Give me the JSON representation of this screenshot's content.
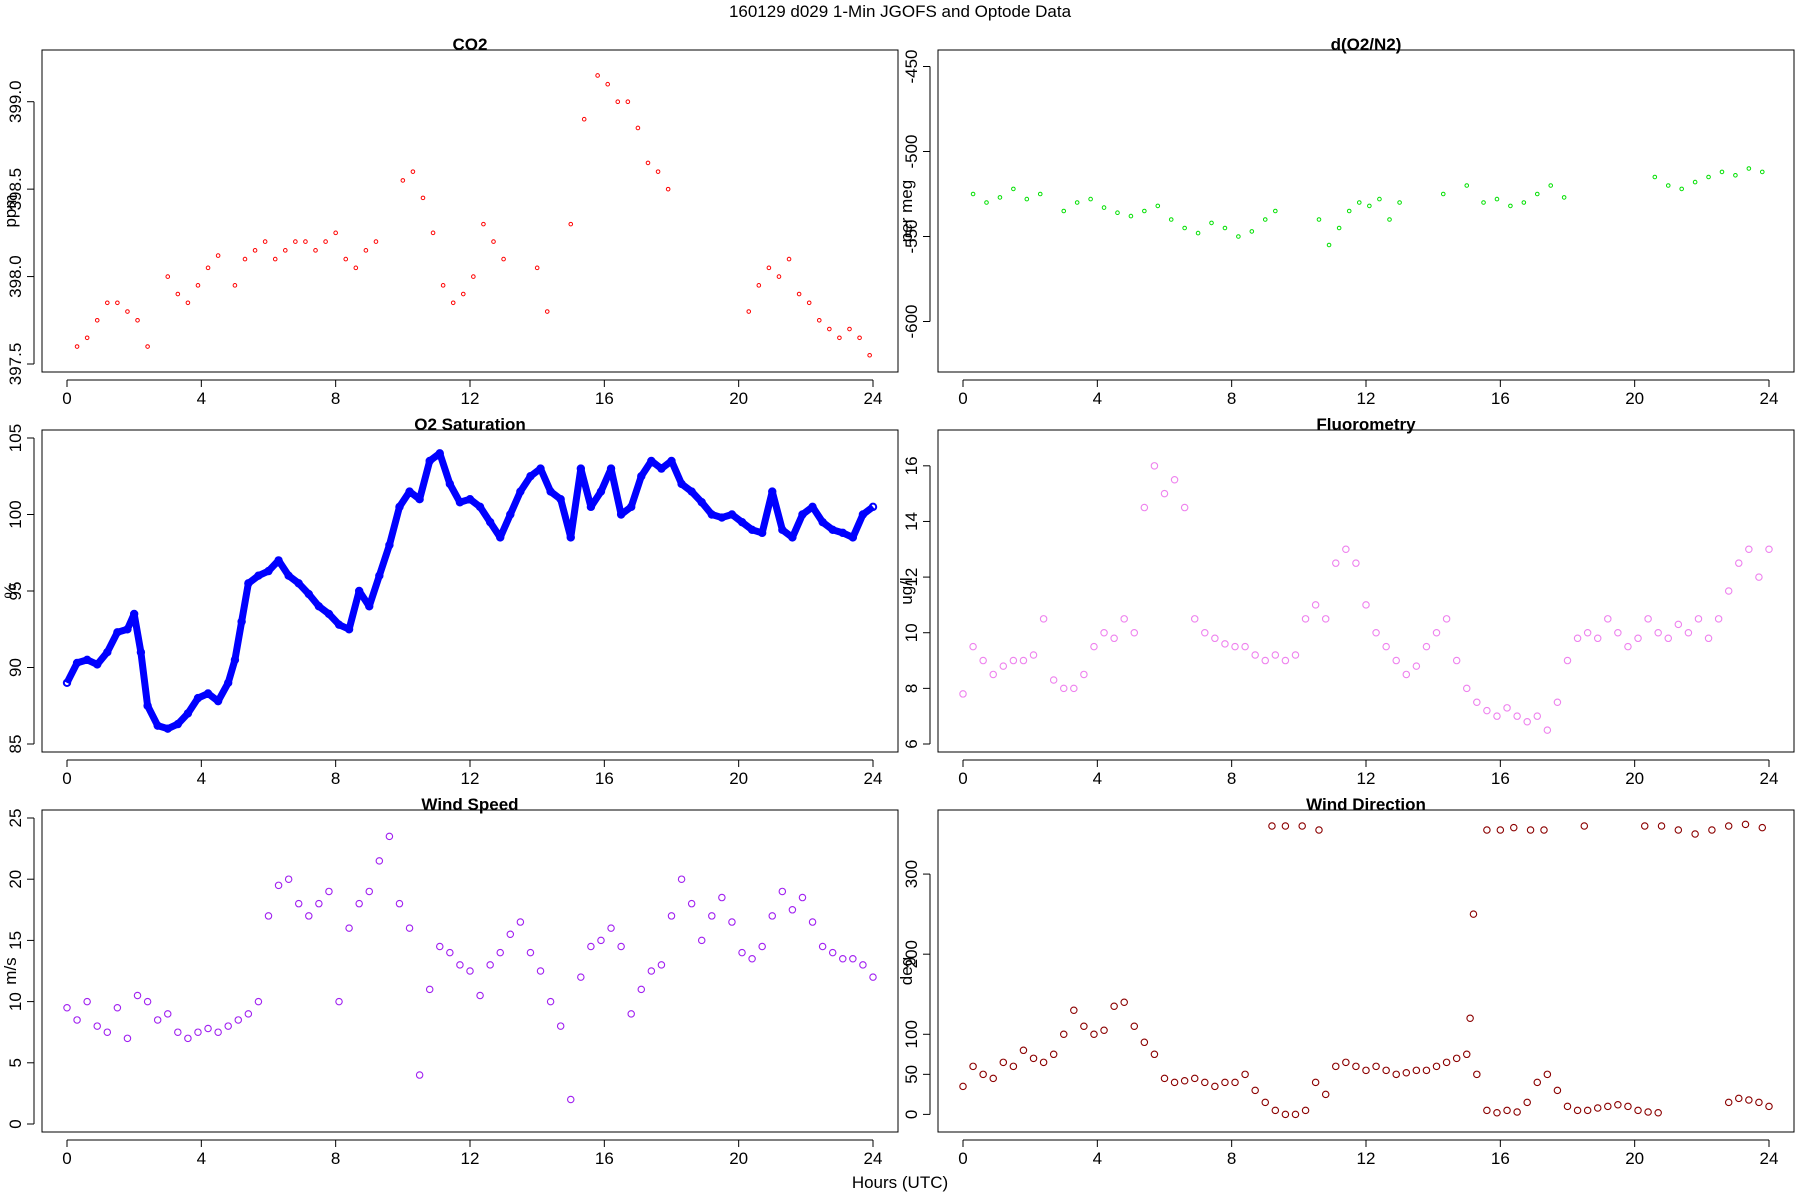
{
  "figure": {
    "title": "160129   d029   1-Min  JGOFS and Optode Data",
    "xlabel": "Hours (UTC)"
  },
  "chart_data": [
    {
      "id": "co2",
      "type": "scatter",
      "title": "CO2",
      "ylabel": "ppm",
      "color": "#ff0000",
      "marker": "small-open-circle",
      "xlim": [
        0,
        24
      ],
      "ylim": [
        397.5,
        399.25
      ],
      "xticks": [
        0,
        4,
        8,
        12,
        16,
        20,
        24
      ],
      "yticks": [
        397.5,
        398.0,
        398.5,
        399.0
      ],
      "ytick_labels": [
        "397.5",
        "398.0",
        "398.5",
        "399.0"
      ],
      "x": [
        0.3,
        0.6,
        0.9,
        1.2,
        1.5,
        1.8,
        2.1,
        2.4,
        3.0,
        3.3,
        3.6,
        3.9,
        4.2,
        4.5,
        5.0,
        5.3,
        5.6,
        5.9,
        6.2,
        6.5,
        6.8,
        7.1,
        7.4,
        7.7,
        8.0,
        8.3,
        8.6,
        8.9,
        9.2,
        10.0,
        10.3,
        10.6,
        10.9,
        11.2,
        11.5,
        11.8,
        12.1,
        12.4,
        12.7,
        13.0,
        14.0,
        14.3,
        15.0,
        15.4,
        15.8,
        16.1,
        16.4,
        16.7,
        17.0,
        17.3,
        17.6,
        17.9,
        20.3,
        20.6,
        20.9,
        21.2,
        21.5,
        21.8,
        22.1,
        22.4,
        22.7,
        23.0,
        23.3,
        23.6,
        23.9
      ],
      "y": [
        397.6,
        397.65,
        397.75,
        397.85,
        397.85,
        397.8,
        397.75,
        397.6,
        398.0,
        397.9,
        397.85,
        397.95,
        398.05,
        398.12,
        397.95,
        398.1,
        398.15,
        398.2,
        398.1,
        398.15,
        398.2,
        398.2,
        398.15,
        398.2,
        398.25,
        398.1,
        398.05,
        398.15,
        398.2,
        398.55,
        398.6,
        398.45,
        398.25,
        397.95,
        397.85,
        397.9,
        398.0,
        398.3,
        398.2,
        398.1,
        398.05,
        397.8,
        398.3,
        398.9,
        399.15,
        399.1,
        399.0,
        399.0,
        398.85,
        398.65,
        398.6,
        398.5,
        397.8,
        397.95,
        398.05,
        398.0,
        398.1,
        397.9,
        397.85,
        397.75,
        397.7,
        397.65,
        397.7,
        397.65,
        397.55
      ]
    },
    {
      "id": "do2n2",
      "type": "scatter",
      "title": "d(O2/N2)",
      "ylabel": "per meg",
      "color": "#00e000",
      "marker": "small-open-circle",
      "xlim": [
        0,
        24
      ],
      "ylim": [
        -625,
        -445
      ],
      "xticks": [
        0,
        4,
        8,
        12,
        16,
        20,
        24
      ],
      "yticks": [
        -600,
        -550,
        -500,
        -450
      ],
      "ytick_labels": [
        "-600",
        "-550",
        "-500",
        "-450"
      ],
      "x": [
        0.3,
        0.7,
        1.1,
        1.5,
        1.9,
        2.3,
        3.0,
        3.4,
        3.8,
        4.2,
        4.6,
        5.0,
        5.4,
        5.8,
        6.2,
        6.6,
        7.0,
        7.4,
        7.8,
        8.2,
        8.6,
        9.0,
        9.3,
        10.6,
        10.9,
        11.2,
        11.5,
        11.8,
        12.1,
        12.4,
        12.7,
        13.0,
        14.3,
        15.0,
        15.5,
        15.9,
        16.3,
        16.7,
        17.1,
        17.5,
        17.9,
        20.6,
        21.0,
        21.4,
        21.8,
        22.2,
        22.6,
        23.0,
        23.4,
        23.8
      ],
      "y": [
        -525,
        -530,
        -527,
        -522,
        -528,
        -525,
        -535,
        -530,
        -528,
        -533,
        -536,
        -538,
        -535,
        -532,
        -540,
        -545,
        -548,
        -542,
        -545,
        -550,
        -547,
        -540,
        -535,
        -540,
        -555,
        -545,
        -535,
        -530,
        -532,
        -528,
        -540,
        -530,
        -525,
        -520,
        -530,
        -528,
        -532,
        -530,
        -525,
        -520,
        -527,
        -515,
        -520,
        -522,
        -518,
        -515,
        -512,
        -514,
        -510,
        -512
      ]
    },
    {
      "id": "o2sat",
      "type": "scatter",
      "title": "O2 Saturation",
      "ylabel": "%",
      "color": "#0000ff",
      "marker": "dense-open-circle-line",
      "xlim": [
        0,
        24
      ],
      "ylim": [
        85,
        105
      ],
      "xticks": [
        0,
        4,
        8,
        12,
        16,
        20,
        24
      ],
      "yticks": [
        85,
        90,
        95,
        100,
        105
      ],
      "ytick_labels": [
        "85",
        "90",
        "95",
        "100",
        "105"
      ],
      "x": [
        0.0,
        0.3,
        0.6,
        0.9,
        1.2,
        1.5,
        1.8,
        2.0,
        2.2,
        2.4,
        2.7,
        3.0,
        3.3,
        3.6,
        3.9,
        4.2,
        4.5,
        4.8,
        5.0,
        5.2,
        5.4,
        5.7,
        6.0,
        6.3,
        6.6,
        6.9,
        7.2,
        7.5,
        7.8,
        8.1,
        8.4,
        8.7,
        9.0,
        9.3,
        9.6,
        9.9,
        10.2,
        10.5,
        10.8,
        11.1,
        11.4,
        11.7,
        12.0,
        12.3,
        12.6,
        12.9,
        13.2,
        13.5,
        13.8,
        14.1,
        14.4,
        14.7,
        15.0,
        15.3,
        15.6,
        15.9,
        16.2,
        16.5,
        16.8,
        17.1,
        17.4,
        17.7,
        18.0,
        18.3,
        18.6,
        18.9,
        19.2,
        19.5,
        19.8,
        20.1,
        20.4,
        20.7,
        21.0,
        21.3,
        21.6,
        21.9,
        22.2,
        22.5,
        22.8,
        23.1,
        23.4,
        23.7,
        24.0
      ],
      "y": [
        89.0,
        90.3,
        90.5,
        90.2,
        91.0,
        92.3,
        92.5,
        93.5,
        91.0,
        87.5,
        86.2,
        86.0,
        86.3,
        87.0,
        88.0,
        88.3,
        87.8,
        89.0,
        90.5,
        93.0,
        95.5,
        96.0,
        96.3,
        97.0,
        96.0,
        95.5,
        94.8,
        94.0,
        93.5,
        92.8,
        92.5,
        95.0,
        94.0,
        96.0,
        98.0,
        100.5,
        101.5,
        101.0,
        103.5,
        104.0,
        102.0,
        100.8,
        101.0,
        100.5,
        99.5,
        98.5,
        100.0,
        101.5,
        102.5,
        103.0,
        101.5,
        101.0,
        98.5,
        103.0,
        100.5,
        101.5,
        103.0,
        100.0,
        100.5,
        102.5,
        103.5,
        103.0,
        103.5,
        102.0,
        101.5,
        100.8,
        100.0,
        99.8,
        100.0,
        99.5,
        99.0,
        98.8,
        101.5,
        99.0,
        98.5,
        100.0,
        100.5,
        99.5,
        99.0,
        98.8,
        98.5,
        100.0,
        100.5
      ]
    },
    {
      "id": "fluoro",
      "type": "scatter",
      "title": "Fluorometry",
      "ylabel": "ug/l",
      "color": "#ee82ee",
      "marker": "open-circle",
      "xlim": [
        0,
        24
      ],
      "ylim": [
        6,
        17
      ],
      "xticks": [
        0,
        4,
        8,
        12,
        16,
        20,
        24
      ],
      "yticks": [
        6,
        8,
        10,
        12,
        14,
        16
      ],
      "ytick_labels": [
        "6",
        "8",
        "10",
        "12",
        "14",
        "16"
      ],
      "x": [
        0.0,
        0.3,
        0.6,
        0.9,
        1.2,
        1.5,
        1.8,
        2.1,
        2.4,
        2.7,
        3.0,
        3.3,
        3.6,
        3.9,
        4.2,
        4.5,
        4.8,
        5.1,
        5.4,
        5.7,
        6.0,
        6.3,
        6.6,
        6.9,
        7.2,
        7.5,
        7.8,
        8.1,
        8.4,
        8.7,
        9.0,
        9.3,
        9.6,
        9.9,
        10.2,
        10.5,
        10.8,
        11.1,
        11.4,
        11.7,
        12.0,
        12.3,
        12.6,
        12.9,
        13.2,
        13.5,
        13.8,
        14.1,
        14.4,
        14.7,
        15.0,
        15.3,
        15.6,
        15.9,
        16.2,
        16.5,
        16.8,
        17.1,
        17.4,
        17.7,
        18.0,
        18.3,
        18.6,
        18.9,
        19.2,
        19.5,
        19.8,
        20.1,
        20.4,
        20.7,
        21.0,
        21.3,
        21.6,
        21.9,
        22.2,
        22.5,
        22.8,
        23.1,
        23.4,
        23.7,
        24.0
      ],
      "y": [
        7.8,
        9.5,
        9.0,
        8.5,
        8.8,
        9.0,
        9.0,
        9.2,
        10.5,
        8.3,
        8.0,
        8.0,
        8.5,
        9.5,
        10.0,
        9.8,
        10.5,
        10.0,
        14.5,
        16.0,
        15.0,
        15.5,
        14.5,
        10.5,
        10.0,
        9.8,
        9.6,
        9.5,
        9.5,
        9.2,
        9.0,
        9.2,
        9.0,
        9.2,
        10.5,
        11.0,
        10.5,
        12.5,
        13.0,
        12.5,
        11.0,
        10.0,
        9.5,
        9.0,
        8.5,
        8.8,
        9.5,
        10.0,
        10.5,
        9.0,
        8.0,
        7.5,
        7.2,
        7.0,
        7.3,
        7.0,
        6.8,
        7.0,
        6.5,
        7.5,
        9.0,
        9.8,
        10.0,
        9.8,
        10.5,
        10.0,
        9.5,
        9.8,
        10.5,
        10.0,
        9.8,
        10.3,
        10.0,
        10.5,
        9.8,
        10.5,
        11.5,
        12.5,
        13.0,
        12.0,
        13.0
      ]
    },
    {
      "id": "wspd",
      "type": "scatter",
      "title": "Wind Speed",
      "ylabel": "m/s",
      "color": "#a020f0",
      "marker": "open-circle",
      "xlim": [
        0,
        24
      ],
      "ylim": [
        0,
        25
      ],
      "xticks": [
        0,
        4,
        8,
        12,
        16,
        20,
        24
      ],
      "yticks": [
        0,
        5,
        10,
        15,
        20,
        25
      ],
      "ytick_labels": [
        "0",
        "5",
        "10",
        "15",
        "20",
        "25"
      ],
      "x": [
        0.0,
        0.3,
        0.6,
        0.9,
        1.2,
        1.5,
        1.8,
        2.1,
        2.4,
        2.7,
        3.0,
        3.3,
        3.6,
        3.9,
        4.2,
        4.5,
        4.8,
        5.1,
        5.4,
        5.7,
        6.0,
        6.3,
        6.6,
        6.9,
        7.2,
        7.5,
        7.8,
        8.1,
        8.4,
        8.7,
        9.0,
        9.3,
        9.6,
        9.9,
        10.2,
        10.5,
        10.8,
        11.1,
        11.4,
        11.7,
        12.0,
        12.3,
        12.6,
        12.9,
        13.2,
        13.5,
        13.8,
        14.1,
        14.4,
        14.7,
        15.0,
        15.3,
        15.6,
        15.9,
        16.2,
        16.5,
        16.8,
        17.1,
        17.4,
        17.7,
        18.0,
        18.3,
        18.6,
        18.9,
        19.2,
        19.5,
        19.8,
        20.1,
        20.4,
        20.7,
        21.0,
        21.3,
        21.6,
        21.9,
        22.2,
        22.5,
        22.8,
        23.1,
        23.4,
        23.7,
        24.0
      ],
      "y": [
        9.5,
        8.5,
        10.0,
        8.0,
        7.5,
        9.5,
        7.0,
        10.5,
        10.0,
        8.5,
        9.0,
        7.5,
        7.0,
        7.5,
        7.8,
        7.5,
        8.0,
        8.5,
        9.0,
        10.0,
        17.0,
        19.5,
        20.0,
        18.0,
        17.0,
        18.0,
        19.0,
        10.0,
        16.0,
        18.0,
        19.0,
        21.5,
        23.5,
        18.0,
        16.0,
        4.0,
        11.0,
        14.5,
        14.0,
        13.0,
        12.5,
        10.5,
        13.0,
        14.0,
        15.5,
        16.5,
        14.0,
        12.5,
        10.0,
        8.0,
        2.0,
        12.0,
        14.5,
        15.0,
        16.0,
        14.5,
        9.0,
        11.0,
        12.5,
        13.0,
        17.0,
        20.0,
        18.0,
        15.0,
        17.0,
        18.5,
        16.5,
        14.0,
        13.5,
        14.5,
        17.0,
        19.0,
        17.5,
        18.5,
        16.5,
        14.5,
        14.0,
        13.5,
        13.5,
        13.0,
        12.0
      ]
    },
    {
      "id": "wdir",
      "type": "scatter",
      "title": "Wind Direction",
      "ylabel": "deg",
      "color": "#8b0000",
      "marker": "open-circle",
      "xlim": [
        0,
        24
      ],
      "ylim": [
        -12,
        370
      ],
      "xticks": [
        0,
        4,
        8,
        12,
        16,
        20,
        24
      ],
      "yticks": [
        0,
        50,
        100,
        200,
        300
      ],
      "ytick_labels": [
        "0",
        "50",
        "100",
        "200",
        "300"
      ],
      "x": [
        0.0,
        0.3,
        0.6,
        0.9,
        1.2,
        1.5,
        1.8,
        2.1,
        2.4,
        2.7,
        3.0,
        3.3,
        3.6,
        3.9,
        4.2,
        4.5,
        4.8,
        5.1,
        5.4,
        5.7,
        6.0,
        6.3,
        6.6,
        6.9,
        7.2,
        7.5,
        7.8,
        8.1,
        8.4,
        8.7,
        9.0,
        9.3,
        9.6,
        9.9,
        10.2,
        10.5,
        10.8,
        11.1,
        11.4,
        11.7,
        12.0,
        12.3,
        12.6,
        12.9,
        13.2,
        13.5,
        13.8,
        14.1,
        14.4,
        14.7,
        15.0,
        15.1,
        15.2,
        15.3,
        15.6,
        15.9,
        16.2,
        16.5,
        16.8,
        17.1,
        17.4,
        17.7,
        18.0,
        18.3,
        18.6,
        18.9,
        19.2,
        19.5,
        19.8,
        20.1,
        20.4,
        20.7,
        22.8,
        23.1,
        23.4,
        23.7,
        24.0,
        9.2,
        9.6,
        10.1,
        10.6,
        15.6,
        16.0,
        16.4,
        16.9,
        17.3,
        18.5,
        20.3,
        20.8,
        21.3,
        21.8,
        22.3,
        22.8,
        23.3,
        23.8
      ],
      "y": [
        35,
        60,
        50,
        45,
        65,
        60,
        80,
        70,
        65,
        75,
        100,
        130,
        110,
        100,
        105,
        135,
        140,
        110,
        90,
        75,
        45,
        40,
        42,
        45,
        40,
        35,
        40,
        40,
        50,
        30,
        15,
        5,
        0,
        0,
        5,
        40,
        25,
        60,
        65,
        60,
        55,
        60,
        55,
        50,
        52,
        55,
        55,
        60,
        65,
        70,
        75,
        120,
        250,
        50,
        5,
        2,
        5,
        3,
        15,
        40,
        50,
        30,
        10,
        5,
        5,
        8,
        10,
        12,
        10,
        5,
        3,
        2,
        15,
        20,
        18,
        15,
        10,
        360,
        360,
        360,
        355,
        355,
        355,
        358,
        355,
        355,
        360,
        360,
        360,
        355,
        350,
        355,
        360,
        362,
        358
      ]
    }
  ]
}
